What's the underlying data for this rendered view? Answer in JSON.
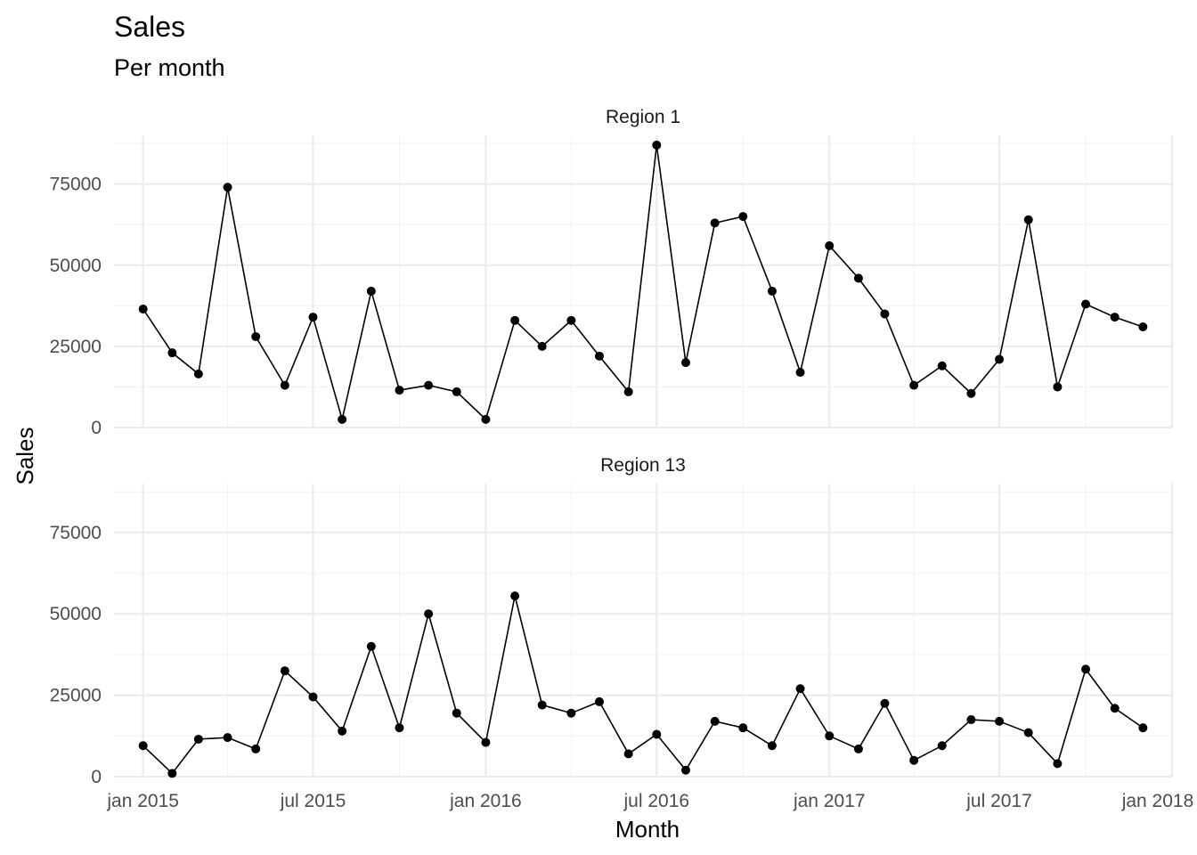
{
  "chart_data": {
    "type": "line",
    "title": "Sales",
    "subtitle": "Per month",
    "xlabel": "Month",
    "ylabel": "Sales",
    "x_tick_labels": [
      "jan 2015",
      "jul 2015",
      "jan 2016",
      "jul 2016",
      "jan 2017",
      "jul 2017",
      "jan 2018"
    ],
    "y_tick_labels": [
      "0",
      "25000",
      "50000",
      "75000"
    ],
    "y_ticks": [
      0,
      25000,
      50000,
      75000
    ],
    "ylim": [
      0,
      90000
    ],
    "xlim": [
      "2014-12-01",
      "2018-01-01"
    ],
    "grid": true,
    "x": [
      "2015-01-01",
      "2015-02-01",
      "2015-03-01",
      "2015-04-01",
      "2015-05-01",
      "2015-06-01",
      "2015-07-01",
      "2015-08-01",
      "2015-09-01",
      "2015-10-01",
      "2015-11-01",
      "2015-12-01",
      "2016-01-01",
      "2016-02-01",
      "2016-03-01",
      "2016-04-01",
      "2016-05-01",
      "2016-06-01",
      "2016-07-01",
      "2016-08-01",
      "2016-09-01",
      "2016-10-01",
      "2016-11-01",
      "2016-12-01",
      "2017-01-01",
      "2017-02-01",
      "2017-03-01",
      "2017-04-01",
      "2017-05-01",
      "2017-06-01",
      "2017-07-01",
      "2017-08-01",
      "2017-09-01",
      "2017-10-01",
      "2017-11-01",
      "2017-12-01"
    ],
    "panels": [
      {
        "label": "Region 1",
        "values": [
          36500,
          23000,
          16500,
          74000,
          28000,
          13000,
          34000,
          2500,
          42000,
          11500,
          13000,
          11000,
          2500,
          33000,
          25000,
          33000,
          22000,
          11000,
          87000,
          20000,
          63000,
          65000,
          42000,
          17000,
          56000,
          46000,
          35000,
          13000,
          19000,
          10500,
          21000,
          64000,
          12500,
          38000,
          34000,
          31000
        ]
      },
      {
        "label": "Region 13",
        "values": [
          9500,
          1000,
          11500,
          12000,
          8500,
          32500,
          24500,
          14000,
          40000,
          15000,
          50000,
          19500,
          10500,
          55500,
          22000,
          19500,
          23000,
          7000,
          13000,
          2000,
          17000,
          15000,
          9500,
          27000,
          12500,
          8500,
          22500,
          5000,
          9500,
          17500,
          17000,
          13500,
          4000,
          33000,
          21000,
          15000
        ]
      }
    ]
  }
}
